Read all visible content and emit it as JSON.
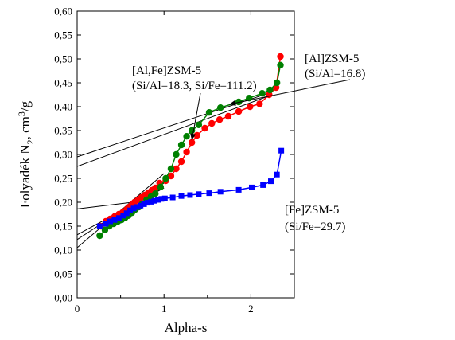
{
  "chart_data": {
    "type": "scatter",
    "xlabel": "Alpha-s",
    "ylabel": "Folyadék N",
    "ylabel_sub": "2",
    "ylabel_unit_prefix": ", cm",
    "ylabel_unit_sup": "3",
    "ylabel_unit_suffix": "/g",
    "xlim": [
      0,
      2.5
    ],
    "ylim": [
      0.0,
      0.6
    ],
    "x_ticks": [
      0,
      1,
      2
    ],
    "x_tick_labels": [
      "0",
      "1",
      "2"
    ],
    "y_ticks": [
      0.0,
      0.05,
      0.1,
      0.15,
      0.2,
      0.25,
      0.3,
      0.35,
      0.4,
      0.45,
      0.5,
      0.55,
      0.6
    ],
    "y_tick_labels": [
      "0,00",
      "0,05",
      "0,10",
      "0,15",
      "0,20",
      "0,25",
      "0,30",
      "0,35",
      "0,40",
      "0,45",
      "0,50",
      "0,55",
      "0,60"
    ],
    "grid": false,
    "series": [
      {
        "color": "#ff0000",
        "marker": "circle",
        "points": [
          [
            0.27,
            0.15
          ],
          [
            0.33,
            0.16
          ],
          [
            0.38,
            0.165
          ],
          [
            0.43,
            0.17
          ],
          [
            0.48,
            0.175
          ],
          [
            0.53,
            0.18
          ],
          [
            0.57,
            0.185
          ],
          [
            0.6,
            0.19
          ],
          [
            0.63,
            0.195
          ],
          [
            0.66,
            0.2
          ],
          [
            0.7,
            0.205
          ],
          [
            0.74,
            0.21
          ],
          [
            0.78,
            0.215
          ],
          [
            0.82,
            0.22
          ],
          [
            0.86,
            0.225
          ],
          [
            0.9,
            0.23
          ],
          [
            0.95,
            0.24
          ],
          [
            1.02,
            0.245
          ],
          [
            1.08,
            0.255
          ],
          [
            1.14,
            0.27
          ],
          [
            1.2,
            0.285
          ],
          [
            1.26,
            0.305
          ],
          [
            1.32,
            0.325
          ],
          [
            1.38,
            0.34
          ],
          [
            1.47,
            0.355
          ],
          [
            1.55,
            0.365
          ],
          [
            1.64,
            0.373
          ],
          [
            1.74,
            0.38
          ],
          [
            1.86,
            0.39
          ],
          [
            1.99,
            0.4
          ],
          [
            2.1,
            0.406
          ],
          [
            2.21,
            0.425
          ],
          [
            2.29,
            0.44
          ],
          [
            2.34,
            0.505
          ]
        ]
      },
      {
        "color": "#008000",
        "marker": "circle",
        "points": [
          [
            0.26,
            0.13
          ],
          [
            0.32,
            0.142
          ],
          [
            0.37,
            0.15
          ],
          [
            0.42,
            0.155
          ],
          [
            0.47,
            0.16
          ],
          [
            0.51,
            0.163
          ],
          [
            0.55,
            0.167
          ],
          [
            0.59,
            0.172
          ],
          [
            0.63,
            0.178
          ],
          [
            0.67,
            0.185
          ],
          [
            0.71,
            0.19
          ],
          [
            0.75,
            0.197
          ],
          [
            0.8,
            0.205
          ],
          [
            0.85,
            0.212
          ],
          [
            0.9,
            0.218
          ],
          [
            0.96,
            0.232
          ],
          [
            1.02,
            0.25
          ],
          [
            1.08,
            0.27
          ],
          [
            1.14,
            0.3
          ],
          [
            1.2,
            0.32
          ],
          [
            1.26,
            0.338
          ],
          [
            1.32,
            0.35
          ],
          [
            1.4,
            0.362
          ],
          [
            1.52,
            0.388
          ],
          [
            1.65,
            0.398
          ],
          [
            1.86,
            0.41
          ],
          [
            1.98,
            0.418
          ],
          [
            2.13,
            0.428
          ],
          [
            2.22,
            0.435
          ],
          [
            2.3,
            0.45
          ],
          [
            2.34,
            0.487
          ]
        ]
      },
      {
        "color": "#0000ff",
        "marker": "square",
        "points": [
          [
            0.26,
            0.15
          ],
          [
            0.33,
            0.155
          ],
          [
            0.38,
            0.16
          ],
          [
            0.43,
            0.163
          ],
          [
            0.48,
            0.167
          ],
          [
            0.53,
            0.172
          ],
          [
            0.57,
            0.177
          ],
          [
            0.61,
            0.183
          ],
          [
            0.65,
            0.187
          ],
          [
            0.69,
            0.19
          ],
          [
            0.73,
            0.193
          ],
          [
            0.77,
            0.196
          ],
          [
            0.81,
            0.199
          ],
          [
            0.85,
            0.201
          ],
          [
            0.89,
            0.203
          ],
          [
            0.93,
            0.205
          ],
          [
            0.97,
            0.207
          ],
          [
            1.01,
            0.208
          ],
          [
            1.1,
            0.21
          ],
          [
            1.2,
            0.213
          ],
          [
            1.3,
            0.215
          ],
          [
            1.4,
            0.217
          ],
          [
            1.52,
            0.219
          ],
          [
            1.65,
            0.222
          ],
          [
            1.86,
            0.226
          ],
          [
            2.01,
            0.231
          ],
          [
            2.14,
            0.236
          ],
          [
            2.23,
            0.244
          ],
          [
            2.3,
            0.258
          ],
          [
            2.35,
            0.308
          ]
        ]
      }
    ],
    "fit_lines": [
      {
        "x": [
          0,
          2.2
        ],
        "y": [
          0.295,
          0.428
        ]
      },
      {
        "x": [
          0,
          2.2
        ],
        "y": [
          0.275,
          0.422
        ]
      },
      {
        "x": [
          0,
          1.0
        ],
        "y": [
          0.132,
          0.23
        ]
      },
      {
        "x": [
          0,
          1.0
        ],
        "y": [
          0.122,
          0.24
        ]
      },
      {
        "x": [
          0,
          1.0
        ],
        "y": [
          0.105,
          0.26
        ]
      },
      {
        "x": [
          0,
          1.0
        ],
        "y": [
          0.186,
          0.208
        ]
      }
    ],
    "annotations": [
      {
        "lines": [
          "[Al,Fe]ZSM-5",
          "(Si/Al=18.3, Si/Fe=111.2)"
        ],
        "arrow_to": [
          1.32,
          0.33
        ]
      },
      {
        "lines": [
          "[Al]ZSM-5",
          "(Si/Al=16.8)"
        ],
        "arrow_to": [
          1.75,
          0.405
        ]
      },
      {
        "lines": [
          "[Fe]ZSM-5",
          "(Si/Fe=29.7)"
        ]
      }
    ]
  }
}
